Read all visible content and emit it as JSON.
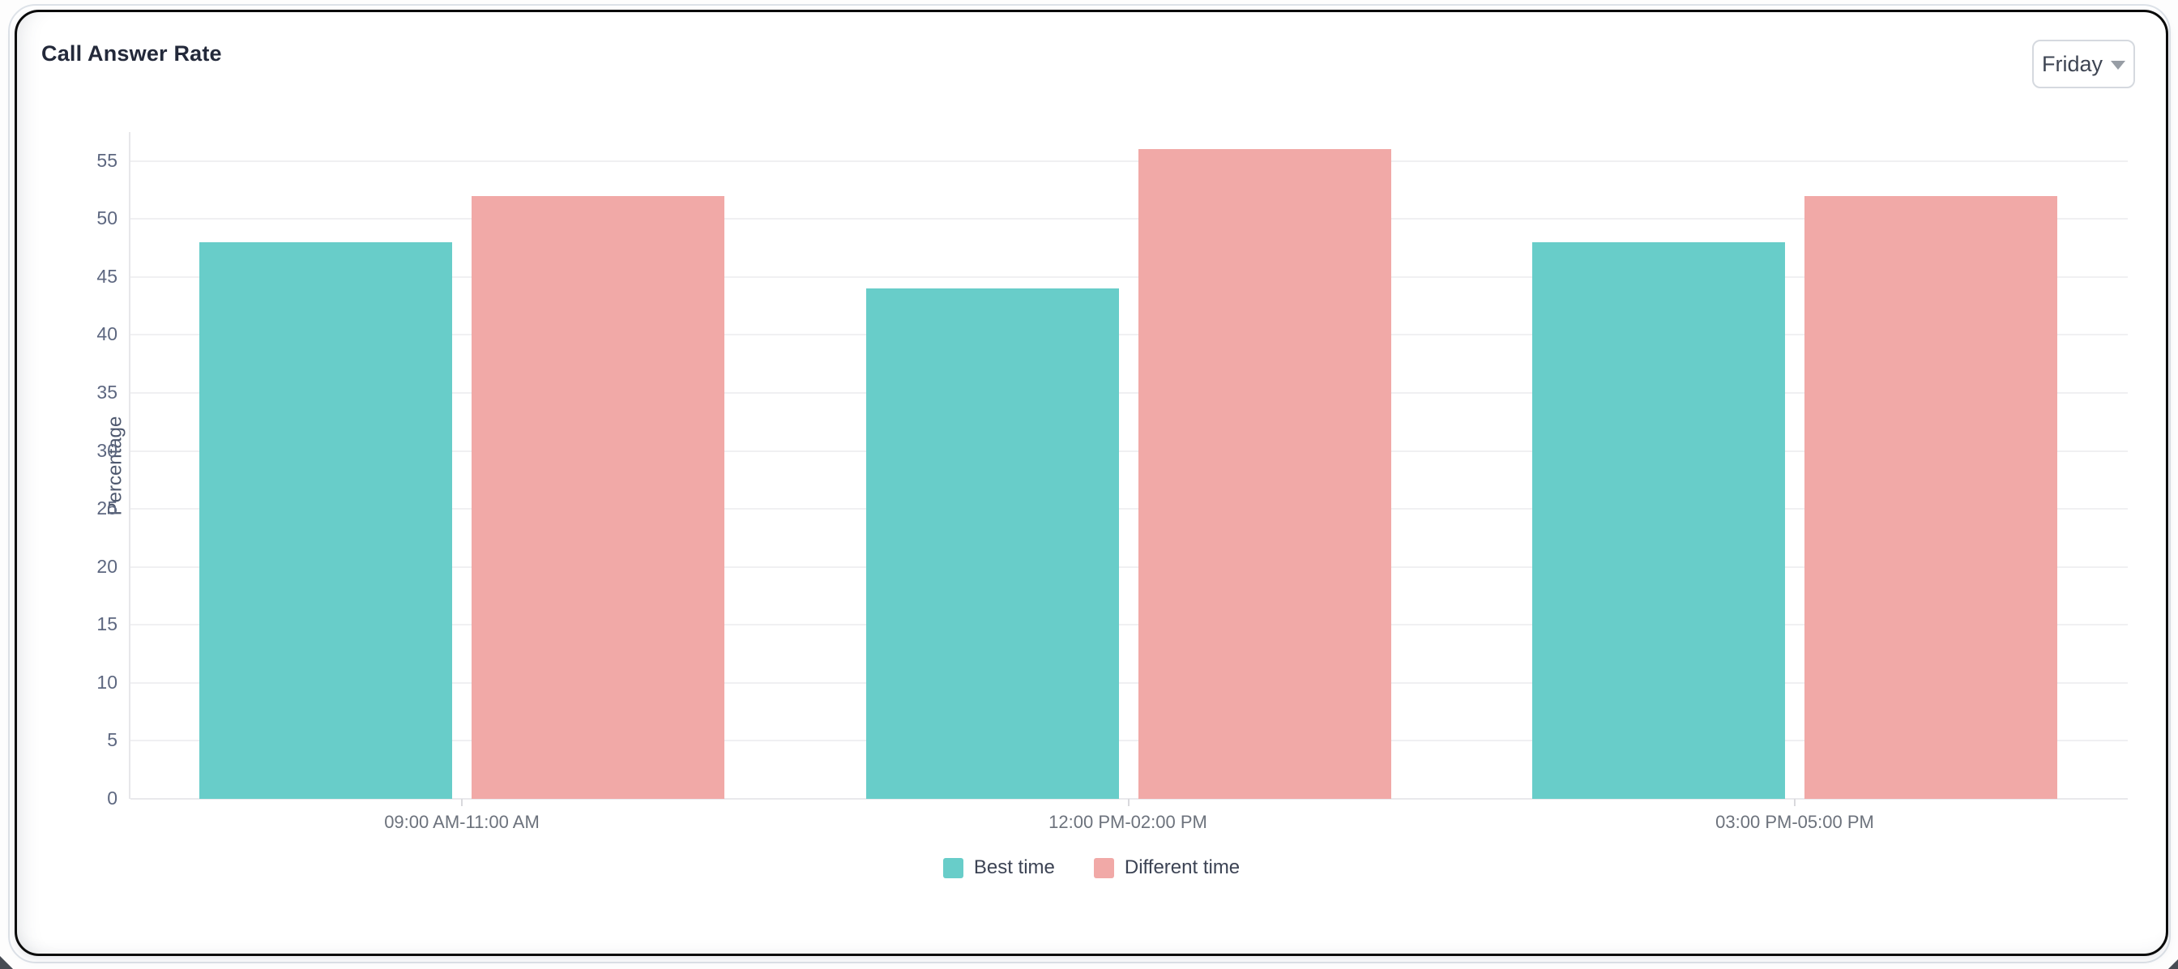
{
  "header": {
    "title": "Call Answer Rate",
    "day_selector": {
      "value": "Friday",
      "icon": "chevron-down-icon"
    }
  },
  "chart_data": {
    "type": "bar",
    "title": "Call Answer Rate",
    "categories": [
      "09:00 AM-11:00 AM",
      "12:00 PM-02:00 PM",
      "03:00 PM-05:00 PM"
    ],
    "series": [
      {
        "name": "Best time",
        "color": "#68cdc9",
        "values": [
          48,
          44,
          48
        ]
      },
      {
        "name": "Different time",
        "color": "#f1a9a7",
        "values": [
          52,
          56,
          52
        ]
      }
    ],
    "xlabel": "",
    "ylabel": "Percentage",
    "yticks": [
      0,
      5,
      10,
      15,
      20,
      25,
      30,
      35,
      40,
      45,
      50,
      55
    ],
    "ylim": [
      0,
      57.5
    ],
    "grid": true,
    "legend_position": "bottom"
  },
  "colors": {
    "best_time": "#68cdc9",
    "different_time": "#f1a9a7",
    "card_border": "#0a0a0a",
    "grid": "#f0f0f2",
    "tick_text": "#5d6780"
  }
}
